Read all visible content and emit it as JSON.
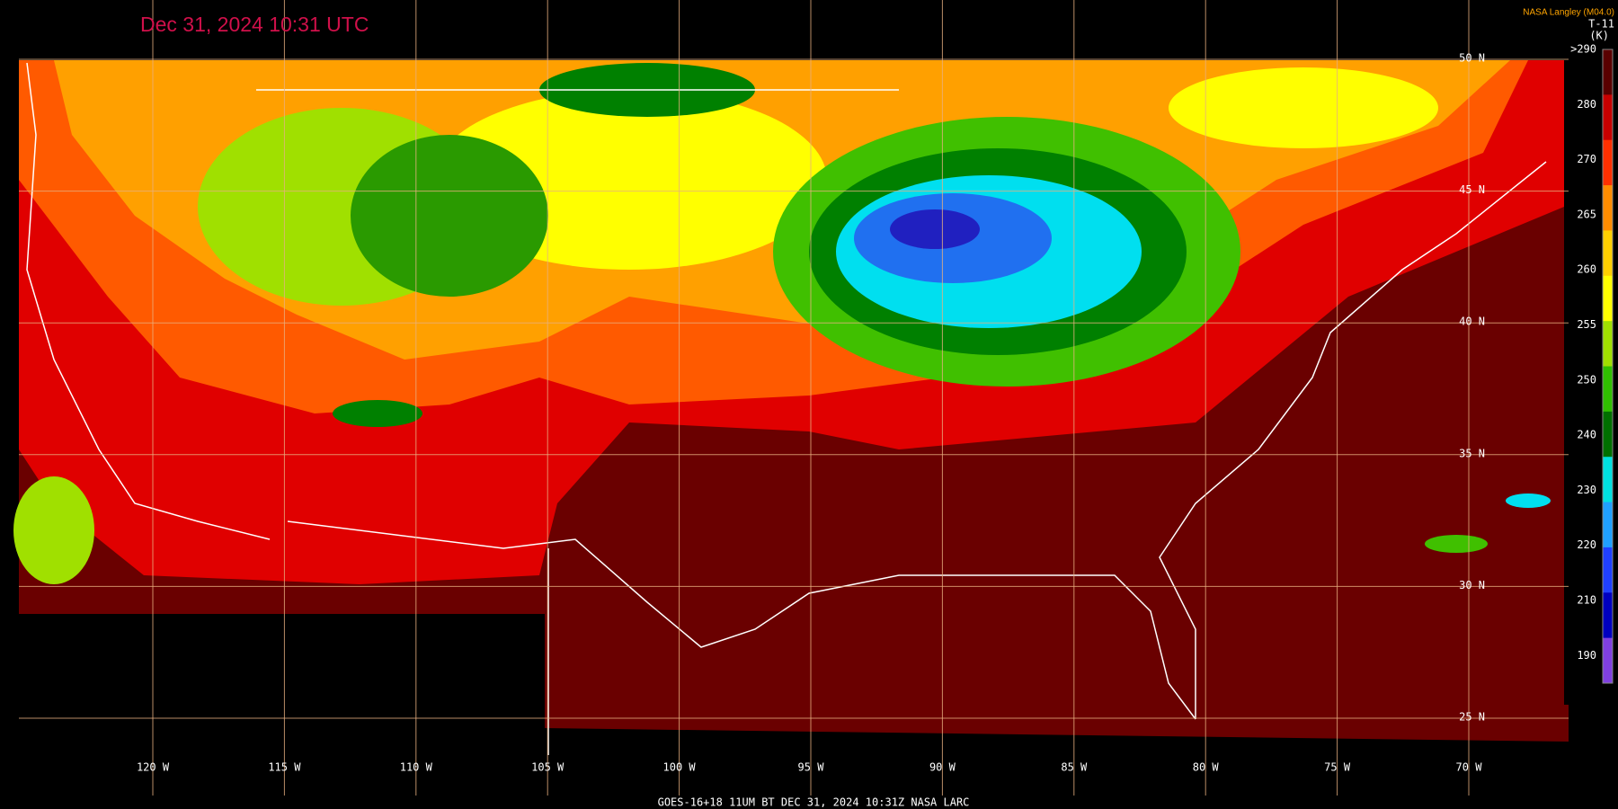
{
  "title": "Dec 31, 2024 10:31 UTC",
  "credit": "NASA Langley (M04.0)",
  "colorbar": {
    "channel": "T-11",
    "unit": "(K)",
    "labels": [
      ">290",
      "280",
      "270",
      "265",
      "260",
      "255",
      "250",
      "240",
      "230",
      "220",
      "210",
      "190"
    ]
  },
  "latitude_labels": [
    "50 N",
    "45 N",
    "40 N",
    "35 N",
    "30 N",
    "25 N"
  ],
  "longitude_labels": [
    "120 W",
    "115 W",
    "110 W",
    "105 W",
    "100 W",
    "95 W",
    "90 W",
    "85 W",
    "80 W",
    "75 W",
    "70 W"
  ],
  "footer": "GOES-16+18  11UM BT  DEC 31, 2024 10:31Z  NASA LARC"
}
